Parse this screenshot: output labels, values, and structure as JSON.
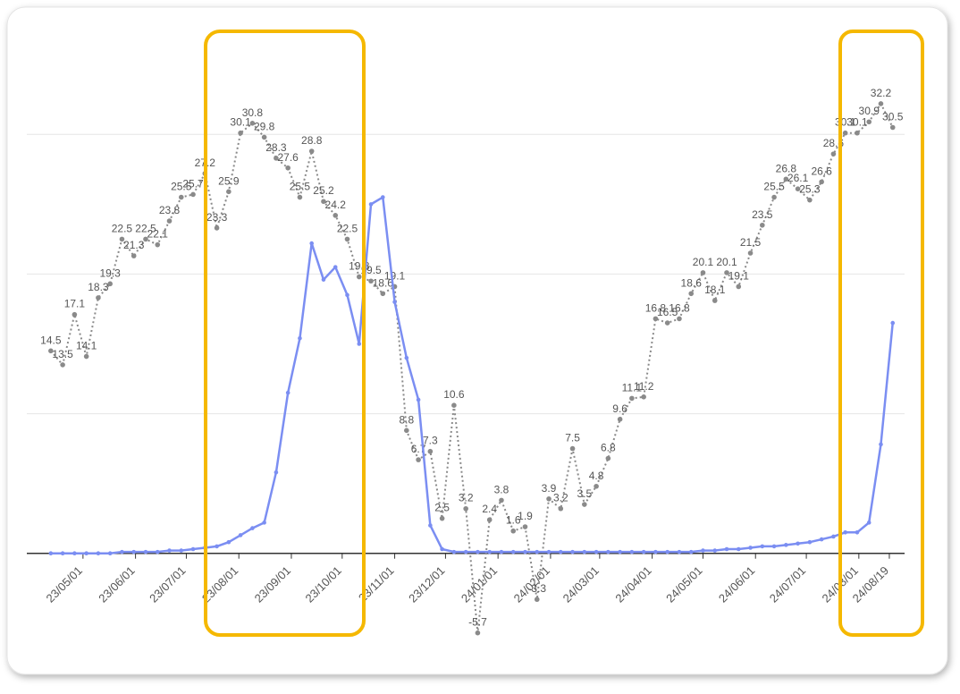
{
  "chart_data": {
    "type": "line",
    "x": [
      "23/04/12",
      "23/04/19",
      "23/04/26",
      "23/05/03",
      "23/05/10",
      "23/05/17",
      "23/05/24",
      "23/05/31",
      "23/06/07",
      "23/06/14",
      "23/06/21",
      "23/06/28",
      "23/07/05",
      "23/07/12",
      "23/07/19",
      "23/07/26",
      "23/08/02",
      "23/08/09",
      "23/08/16",
      "23/08/23",
      "23/08/30",
      "23/09/06",
      "23/09/13",
      "23/09/20",
      "23/09/27",
      "23/10/04",
      "23/10/11",
      "23/10/18",
      "23/10/25",
      "23/11/01",
      "23/11/08",
      "23/11/15",
      "23/11/22",
      "23/11/29",
      "23/12/06",
      "23/12/13",
      "23/12/20",
      "23/12/27",
      "24/01/03",
      "24/01/10",
      "24/01/17",
      "24/01/24",
      "24/01/31",
      "24/02/07",
      "24/02/14",
      "24/02/21",
      "24/02/28",
      "24/03/06",
      "24/03/13",
      "24/03/20",
      "24/03/27",
      "24/04/03",
      "24/04/10",
      "24/04/17",
      "24/04/24",
      "24/05/01",
      "24/05/08",
      "24/05/15",
      "24/05/22",
      "24/05/29",
      "24/06/05",
      "24/06/12",
      "24/06/19",
      "24/06/26",
      "24/07/03",
      "24/07/10",
      "24/07/17",
      "24/07/24",
      "24/07/31",
      "24/08/07",
      "24/08/14",
      "24/08/21"
    ],
    "series": [
      {
        "color": "#8a8a8a",
        "dashed": true,
        "show_labels": true,
        "values": [
          14.5,
          13.5,
          17.1,
          14.1,
          18.3,
          19.3,
          22.5,
          21.3,
          22.5,
          22.1,
          23.8,
          25.5,
          25.7,
          27.2,
          23.3,
          25.9,
          30.1,
          30.8,
          29.8,
          28.3,
          27.6,
          25.5,
          28.8,
          25.2,
          24.2,
          22.5,
          19.8,
          19.5,
          18.6,
          19.1,
          8.8,
          6.7,
          7.3,
          2.5,
          10.6,
          3.2,
          -5.7,
          2.4,
          3.8,
          1.6,
          1.9,
          -3.3,
          3.9,
          3.2,
          7.5,
          3.5,
          4.8,
          6.8,
          9.6,
          11.1,
          11.2,
          16.8,
          16.5,
          16.8,
          18.6,
          20.1,
          18.1,
          20.1,
          19.1,
          21.5,
          23.5,
          25.5,
          26.8,
          26.1,
          25.3,
          26.6,
          28.6,
          30.1,
          30.1,
          30.9,
          32.2,
          30.5
        ]
      },
      {
        "color": "#7b8ef2",
        "dashed": false,
        "show_labels": false,
        "values": [
          0,
          0,
          0,
          0,
          0,
          0,
          0.1,
          0.1,
          0.1,
          0.1,
          0.2,
          0.2,
          0.3,
          0.4,
          0.5,
          0.8,
          1.3,
          1.8,
          2.2,
          5.8,
          11.5,
          15.4,
          22.2,
          19.6,
          20.5,
          18.5,
          15,
          25,
          25.5,
          18,
          14,
          11,
          2,
          0.3,
          0.1,
          0.1,
          0.1,
          0.1,
          0.1,
          0.1,
          0.1,
          0.1,
          0.1,
          0.1,
          0.1,
          0.1,
          0.1,
          0.1,
          0.1,
          0.1,
          0.1,
          0.1,
          0.1,
          0.1,
          0.1,
          0.2,
          0.2,
          0.3,
          0.3,
          0.4,
          0.5,
          0.5,
          0.6,
          0.7,
          0.8,
          1,
          1.2,
          1.5,
          1.5,
          2.2,
          7.8,
          16.5
        ]
      }
    ],
    "xlim": [
      "23/04/01",
      "24/08/28"
    ],
    "xticks": [
      "23/05/01",
      "23/06/01",
      "23/07/01",
      "23/08/01",
      "23/09/01",
      "23/10/01",
      "23/11/01",
      "23/12/01",
      "24/01/01",
      "24/02/01",
      "24/03/01",
      "24/04/01",
      "24/05/01",
      "24/06/01",
      "24/07/01",
      "24/08/01",
      "24/08/19"
    ],
    "ylim": [
      -7,
      37
    ],
    "yticks": [
      0,
      10,
      20,
      30
    ],
    "show_ytick_labels": false,
    "grid": true
  }
}
